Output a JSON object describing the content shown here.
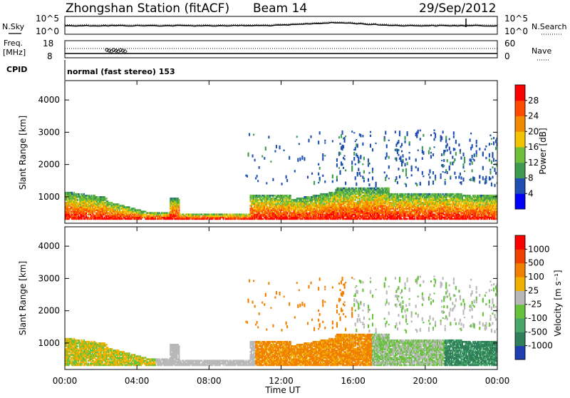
{
  "header": {
    "title": "Zhongshan Station (fitACF)",
    "beam": "Beam 14",
    "date": "29/Sep/2012"
  },
  "top_panels": {
    "nsky_label": "N.Sky",
    "nsearch_label": "N.Search",
    "noise_ticks": [
      "10^5",
      "10^0"
    ],
    "freq_label": "Freq.",
    "freq_unit": "[MHz]",
    "freq_ticks": [
      "18",
      "8"
    ],
    "nave_label": "Nave",
    "nave_ticks": [
      "60",
      "0"
    ],
    "cpid_label": "CPID",
    "cpid_text": "normal (fast stereo) 153"
  },
  "power_panel": {
    "ylabel": "Slant Range [km]",
    "yticks": [
      "4000",
      "3000",
      "2000",
      "1000"
    ],
    "colorbar_label": "Power [dB]",
    "colorbar_ticks": [
      "28",
      "24",
      "20",
      "16",
      "12",
      "8",
      "4"
    ],
    "colors": [
      "#0000ff",
      "#1f4fb0",
      "#3d9a4e",
      "#6fbf3a",
      "#f2c400",
      "#f28a00",
      "#ff4a00",
      "#ff0000"
    ]
  },
  "velocity_panel": {
    "ylabel": "Slant Range [km]",
    "yticks": [
      "4000",
      "3000",
      "2000",
      "1000"
    ],
    "colorbar_label": "Velocity [m s⁻¹]",
    "colorbar_ticks": [
      "1000",
      "500",
      "100",
      "25",
      "-25",
      "-100",
      "-500",
      "-1000"
    ],
    "colors": [
      "#1f3fb0",
      "#2f7f5a",
      "#47a86a",
      "#66c23a",
      "#b8b8b8",
      "#f0b000",
      "#f08000",
      "#f04000",
      "#ff0000"
    ]
  },
  "x_axis": {
    "ticks": [
      "00:00",
      "04:00",
      "08:00",
      "12:00",
      "16:00",
      "20:00",
      "00:00"
    ],
    "label": "Time UT"
  }
}
